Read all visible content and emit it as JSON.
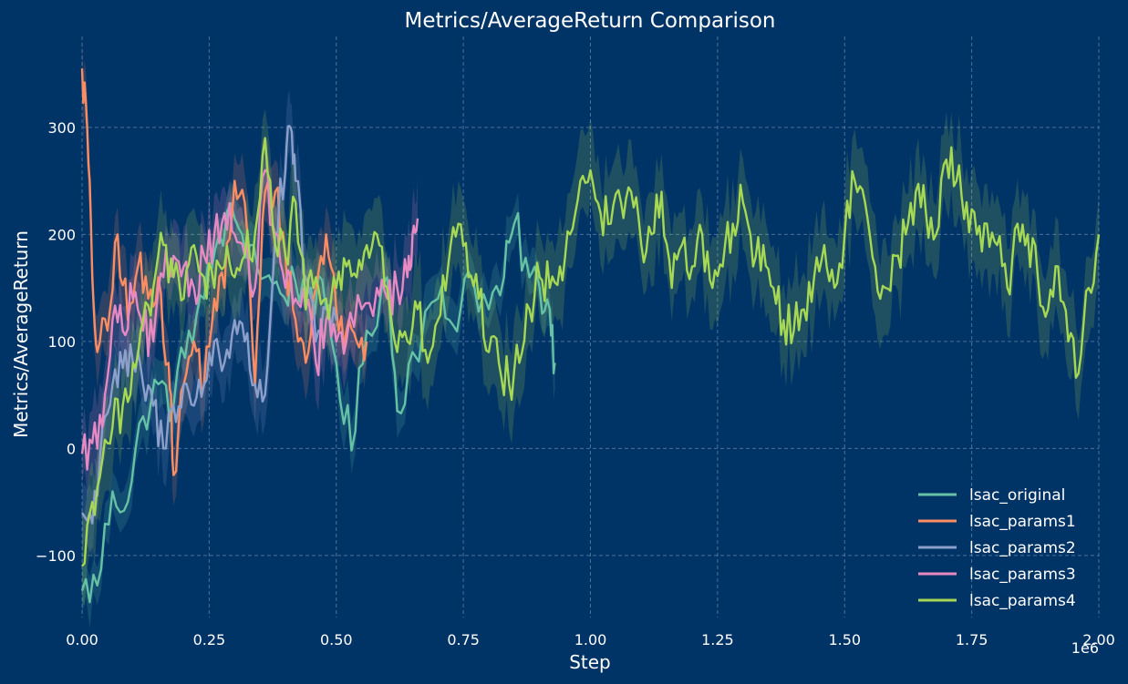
{
  "chart_data": {
    "type": "line",
    "title": "Metrics/AverageReturn Comparison",
    "xlabel": "Step",
    "ylabel": "Metrics/AverageReturn",
    "x_scale_note": "1e6",
    "xlim": [
      0,
      2.0
    ],
    "ylim": [
      -158,
      385
    ],
    "x_ticks": [
      0.0,
      0.25,
      0.5,
      0.75,
      1.0,
      1.25,
      1.5,
      1.75,
      2.0
    ],
    "x_tick_labels": [
      "0.00",
      "0.25",
      "0.50",
      "0.75",
      "1.00",
      "1.25",
      "1.50",
      "1.75",
      "2.00"
    ],
    "y_ticks": [
      -100,
      0,
      100,
      200,
      300
    ],
    "y_tick_labels": [
      "−100",
      "0",
      "100",
      "200",
      "300"
    ],
    "grid": true,
    "legend_position": "bottom-right",
    "series": [
      {
        "name": "lsac_original",
        "color": "#66c2a5",
        "band": 20,
        "points": [
          [
            0.0,
            -133
          ],
          [
            0.03,
            -128
          ],
          [
            0.06,
            -40
          ],
          [
            0.09,
            -50
          ],
          [
            0.12,
            30
          ],
          [
            0.15,
            60
          ],
          [
            0.18,
            40
          ],
          [
            0.21,
            110
          ],
          [
            0.24,
            140
          ],
          [
            0.27,
            200
          ],
          [
            0.3,
            215
          ],
          [
            0.33,
            190
          ],
          [
            0.36,
            160
          ],
          [
            0.39,
            145
          ],
          [
            0.42,
            155
          ],
          [
            0.45,
            150
          ],
          [
            0.48,
            130
          ],
          [
            0.5,
            80
          ],
          [
            0.53,
            -2
          ],
          [
            0.56,
            110
          ],
          [
            0.6,
            160
          ],
          [
            0.62,
            35
          ],
          [
            0.65,
            90
          ],
          [
            0.7,
            140
          ],
          [
            0.73,
            115
          ],
          [
            0.76,
            165
          ],
          [
            0.8,
            130
          ],
          [
            0.83,
            160
          ],
          [
            0.85,
            210
          ],
          [
            0.88,
            160
          ],
          [
            0.9,
            150
          ],
          [
            0.92,
            130
          ],
          [
            0.93,
            80
          ]
        ]
      },
      {
        "name": "lsac_params1",
        "color": "#fc8d62",
        "band": 30,
        "points": [
          [
            0.0,
            355
          ],
          [
            0.01,
            300
          ],
          [
            0.02,
            160
          ],
          [
            0.03,
            90
          ],
          [
            0.05,
            110
          ],
          [
            0.07,
            200
          ],
          [
            0.09,
            120
          ],
          [
            0.11,
            170
          ],
          [
            0.13,
            140
          ],
          [
            0.15,
            160
          ],
          [
            0.17,
            80
          ],
          [
            0.18,
            -25
          ],
          [
            0.2,
            60
          ],
          [
            0.22,
            100
          ],
          [
            0.24,
            60
          ],
          [
            0.26,
            140
          ],
          [
            0.28,
            150
          ],
          [
            0.3,
            250
          ],
          [
            0.32,
            230
          ],
          [
            0.34,
            60
          ],
          [
            0.36,
            240
          ],
          [
            0.38,
            240
          ],
          [
            0.4,
            180
          ],
          [
            0.42,
            120
          ],
          [
            0.44,
            80
          ],
          [
            0.46,
            150
          ],
          [
            0.48,
            200
          ],
          [
            0.5,
            130
          ],
          [
            0.52,
            110
          ],
          [
            0.54,
            100
          ],
          [
            0.56,
            100
          ]
        ]
      },
      {
        "name": "lsac_params2",
        "color": "#8da0cb",
        "band": 30,
        "points": [
          [
            0.0,
            -60
          ],
          [
            0.02,
            -70
          ],
          [
            0.04,
            20
          ],
          [
            0.06,
            60
          ],
          [
            0.08,
            75
          ],
          [
            0.1,
            80
          ],
          [
            0.12,
            60
          ],
          [
            0.14,
            40
          ],
          [
            0.16,
            0
          ],
          [
            0.18,
            40
          ],
          [
            0.2,
            60
          ],
          [
            0.22,
            40
          ],
          [
            0.24,
            60
          ],
          [
            0.26,
            100
          ],
          [
            0.28,
            80
          ],
          [
            0.3,
            120
          ],
          [
            0.32,
            100
          ],
          [
            0.34,
            60
          ],
          [
            0.36,
            50
          ],
          [
            0.38,
            200
          ],
          [
            0.4,
            260
          ],
          [
            0.41,
            300
          ],
          [
            0.42,
            250
          ],
          [
            0.44,
            160
          ],
          [
            0.46,
            100
          ],
          [
            0.48,
            130
          ],
          [
            0.5,
            120
          ]
        ]
      },
      {
        "name": "lsac_params3",
        "color": "#e78ac3",
        "band": 30,
        "points": [
          [
            0.0,
            -5
          ],
          [
            0.02,
            5
          ],
          [
            0.04,
            20
          ],
          [
            0.06,
            120
          ],
          [
            0.08,
            110
          ],
          [
            0.1,
            140
          ],
          [
            0.12,
            110
          ],
          [
            0.14,
            100
          ],
          [
            0.16,
            160
          ],
          [
            0.18,
            180
          ],
          [
            0.2,
            170
          ],
          [
            0.22,
            150
          ],
          [
            0.24,
            180
          ],
          [
            0.26,
            200
          ],
          [
            0.28,
            220
          ],
          [
            0.3,
            200
          ],
          [
            0.32,
            180
          ],
          [
            0.34,
            150
          ],
          [
            0.36,
            260
          ],
          [
            0.38,
            200
          ],
          [
            0.4,
            150
          ],
          [
            0.42,
            140
          ],
          [
            0.44,
            130
          ],
          [
            0.46,
            80
          ],
          [
            0.48,
            120
          ],
          [
            0.5,
            100
          ],
          [
            0.52,
            100
          ],
          [
            0.55,
            130
          ],
          [
            0.58,
            150
          ],
          [
            0.6,
            140
          ],
          [
            0.62,
            150
          ],
          [
            0.64,
            160
          ],
          [
            0.65,
            200
          ],
          [
            0.66,
            215
          ]
        ]
      },
      {
        "name": "lsac_params4",
        "color": "#a6d854",
        "band": 38,
        "points": [
          [
            0.0,
            -110
          ],
          [
            0.02,
            -50
          ],
          [
            0.04,
            -10
          ],
          [
            0.06,
            20
          ],
          [
            0.08,
            40
          ],
          [
            0.1,
            80
          ],
          [
            0.12,
            120
          ],
          [
            0.14,
            150
          ],
          [
            0.16,
            190
          ],
          [
            0.18,
            160
          ],
          [
            0.2,
            140
          ],
          [
            0.22,
            190
          ],
          [
            0.24,
            160
          ],
          [
            0.26,
            150
          ],
          [
            0.28,
            170
          ],
          [
            0.3,
            160
          ],
          [
            0.32,
            180
          ],
          [
            0.34,
            200
          ],
          [
            0.36,
            290
          ],
          [
            0.38,
            190
          ],
          [
            0.4,
            180
          ],
          [
            0.42,
            230
          ],
          [
            0.44,
            130
          ],
          [
            0.46,
            160
          ],
          [
            0.48,
            140
          ],
          [
            0.5,
            150
          ],
          [
            0.52,
            170
          ],
          [
            0.54,
            160
          ],
          [
            0.56,
            190
          ],
          [
            0.58,
            200
          ],
          [
            0.6,
            150
          ],
          [
            0.62,
            90
          ],
          [
            0.64,
            100
          ],
          [
            0.66,
            130
          ],
          [
            0.68,
            80
          ],
          [
            0.7,
            120
          ],
          [
            0.72,
            170
          ],
          [
            0.74,
            210
          ],
          [
            0.76,
            160
          ],
          [
            0.78,
            140
          ],
          [
            0.8,
            90
          ],
          [
            0.82,
            80
          ],
          [
            0.84,
            60
          ],
          [
            0.86,
            80
          ],
          [
            0.88,
            130
          ],
          [
            0.9,
            160
          ],
          [
            0.92,
            150
          ],
          [
            0.94,
            170
          ],
          [
            0.96,
            200
          ],
          [
            0.98,
            250
          ],
          [
            1.0,
            260
          ],
          [
            1.02,
            220
          ],
          [
            1.04,
            210
          ],
          [
            1.06,
            230
          ],
          [
            1.08,
            240
          ],
          [
            1.1,
            190
          ],
          [
            1.12,
            200
          ],
          [
            1.14,
            240
          ],
          [
            1.16,
            150
          ],
          [
            1.18,
            190
          ],
          [
            1.2,
            170
          ],
          [
            1.22,
            200
          ],
          [
            1.24,
            150
          ],
          [
            1.26,
            170
          ],
          [
            1.28,
            210
          ],
          [
            1.3,
            230
          ],
          [
            1.32,
            170
          ],
          [
            1.34,
            190
          ],
          [
            1.36,
            150
          ],
          [
            1.38,
            120
          ],
          [
            1.4,
            110
          ],
          [
            1.42,
            130
          ],
          [
            1.44,
            160
          ],
          [
            1.46,
            190
          ],
          [
            1.48,
            150
          ],
          [
            1.5,
            200
          ],
          [
            1.52,
            250
          ],
          [
            1.54,
            230
          ],
          [
            1.56,
            170
          ],
          [
            1.58,
            150
          ],
          [
            1.6,
            180
          ],
          [
            1.62,
            200
          ],
          [
            1.64,
            240
          ],
          [
            1.66,
            220
          ],
          [
            1.68,
            200
          ],
          [
            1.7,
            270
          ],
          [
            1.72,
            250
          ],
          [
            1.74,
            230
          ],
          [
            1.76,
            200
          ],
          [
            1.78,
            210
          ],
          [
            1.8,
            190
          ],
          [
            1.82,
            150
          ],
          [
            1.84,
            210
          ],
          [
            1.86,
            200
          ],
          [
            1.88,
            160
          ],
          [
            1.9,
            130
          ],
          [
            1.92,
            170
          ],
          [
            1.94,
            100
          ],
          [
            1.96,
            70
          ],
          [
            1.98,
            150
          ],
          [
            2.0,
            200
          ]
        ]
      }
    ]
  }
}
